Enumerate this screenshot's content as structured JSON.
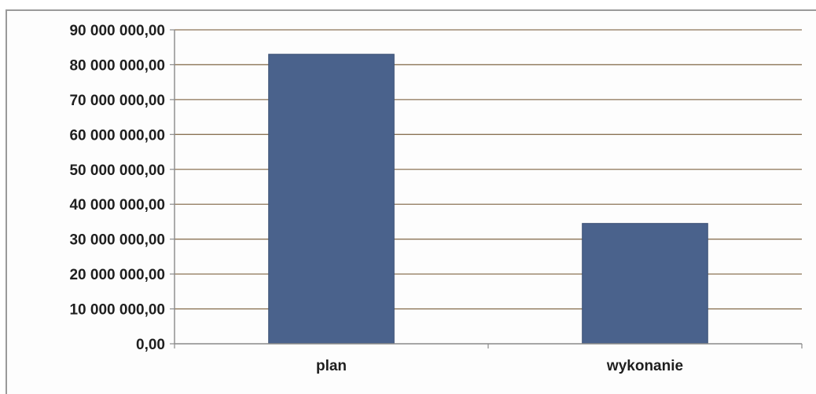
{
  "chart_data": {
    "type": "bar",
    "categories": [
      "plan",
      "wykonanie"
    ],
    "values": [
      83000000,
      34500000
    ],
    "ylim": [
      0,
      90000000
    ],
    "y_tick_labels": [
      "0,00",
      "10 000 000,00",
      "20 000 000,00",
      "30 000 000,00",
      "40 000 000,00",
      "50 000 000,00",
      "60 000 000,00",
      "70 000 000,00",
      "80 000 000,00",
      "90 000 000,00"
    ],
    "y_ticks": [
      0,
      10000000,
      20000000,
      30000000,
      40000000,
      50000000,
      60000000,
      70000000,
      80000000,
      90000000
    ],
    "grid": true,
    "legend": "none",
    "title": "",
    "xlabel": "",
    "ylabel": ""
  },
  "colors": {
    "bar": "#4a628c",
    "bar_edge": "#3b5074",
    "gridline": "#8b7355",
    "axis": "#8a8a8a"
  }
}
